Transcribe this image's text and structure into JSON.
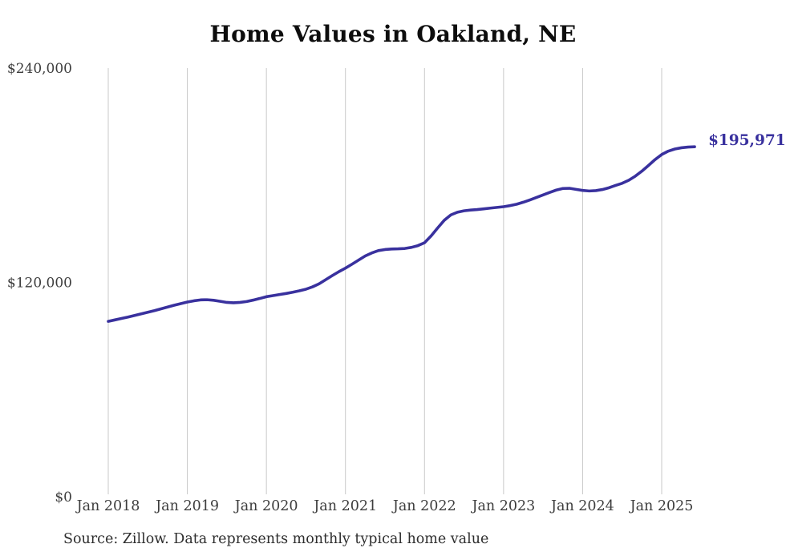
{
  "page": {
    "background": "#ffffff"
  },
  "chart": {
    "title": "Home Values in Oakland, NE",
    "source_note": "Source: Zillow. Data represents monthly typical home value",
    "colors": {
      "line": "#39319e",
      "grid": "#c9c9c9",
      "axis_text": "#3d3d3d",
      "title_text": "#0d0d0d",
      "source_text": "#2e2e2e"
    }
  },
  "chart_data": {
    "type": "line",
    "title": "Home Values in Oakland, NE",
    "xlabel": "",
    "ylabel": "",
    "ylim": [
      0,
      240000
    ],
    "y_ticks": [
      0,
      120000,
      240000
    ],
    "y_tick_labels": [
      "$0",
      "$120,000",
      "$240,000"
    ],
    "x_tick_labels": [
      "Jan 2018",
      "Jan 2019",
      "Jan 2020",
      "Jan 2021",
      "Jan 2022",
      "Jan 2023",
      "Jan 2024",
      "Jan 2025"
    ],
    "x_tick_month_index": [
      0,
      12,
      24,
      36,
      48,
      60,
      72,
      84
    ],
    "grid": "vertical-only",
    "legend": "none",
    "start_month": "2018-01",
    "end_month": "2025-06",
    "final_value": 195971,
    "final_value_label": "$195,971",
    "series": [
      {
        "name": "Monthly typical home value",
        "monthly_values": [
          98200,
          99000,
          99800,
          100600,
          101500,
          102400,
          103300,
          104200,
          105200,
          106200,
          107200,
          108100,
          109000,
          109700,
          110200,
          110300,
          110000,
          109400,
          108800,
          108600,
          108800,
          109300,
          110100,
          111000,
          112000,
          112600,
          113200,
          113800,
          114500,
          115300,
          116200,
          117500,
          119200,
          121500,
          123800,
          126000,
          128000,
          130200,
          132500,
          134800,
          136500,
          137800,
          138400,
          138700,
          138800,
          139000,
          139600,
          140600,
          142200,
          146000,
          150500,
          154800,
          157800,
          159300,
          160100,
          160500,
          160800,
          161200,
          161600,
          162000,
          162400,
          163000,
          163800,
          164900,
          166200,
          167600,
          169000,
          170400,
          171700,
          172600,
          172700,
          172100,
          171500,
          171200,
          171400,
          172000,
          173000,
          174300,
          175500,
          177200,
          179500,
          182300,
          185500,
          188800,
          191600,
          193500,
          194700,
          195400,
          195800,
          195971
        ]
      }
    ]
  }
}
